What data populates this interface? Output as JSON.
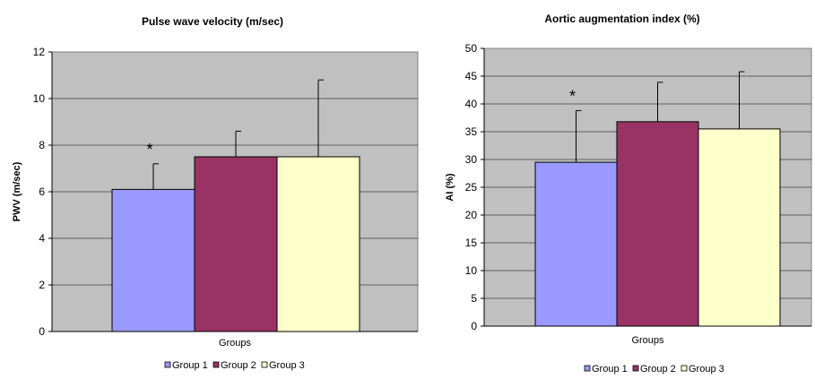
{
  "chart_data": [
    {
      "type": "bar",
      "title": "Pulse wave velocity (m/sec)",
      "xlabel": "Groups",
      "ylabel": "PWV (m/sec)",
      "ylim": [
        0,
        12
      ],
      "yticks": [
        0,
        2,
        4,
        6,
        8,
        10,
        12
      ],
      "grid": true,
      "legend_position": "bottom",
      "series": [
        {
          "name": "Group 1",
          "values": [
            6.1
          ],
          "error": [
            1.1
          ],
          "color": "#9999ff",
          "annotation": "*"
        },
        {
          "name": "Group 2",
          "values": [
            7.5
          ],
          "error": [
            1.1
          ],
          "color": "#993366",
          "annotation": ""
        },
        {
          "name": "Group 3",
          "values": [
            7.5
          ],
          "error": [
            3.3
          ],
          "color": "#ffffcc",
          "annotation": ""
        }
      ]
    },
    {
      "type": "bar",
      "title": "Aortic augmentation index (%)",
      "xlabel": "Groups",
      "ylabel": "AI (%)",
      "ylim": [
        0,
        50
      ],
      "yticks": [
        0,
        5,
        10,
        15,
        20,
        25,
        30,
        35,
        40,
        45,
        50
      ],
      "grid": true,
      "legend_position": "bottom",
      "series": [
        {
          "name": "Group 1",
          "values": [
            29.5
          ],
          "error": [
            9.3
          ],
          "color": "#9999ff",
          "annotation": "*"
        },
        {
          "name": "Group 2",
          "values": [
            36.8
          ],
          "error": [
            7.1
          ],
          "color": "#993366",
          "annotation": ""
        },
        {
          "name": "Group 3",
          "values": [
            35.5
          ],
          "error": [
            10.3
          ],
          "color": "#ffffcc",
          "annotation": ""
        }
      ]
    }
  ]
}
